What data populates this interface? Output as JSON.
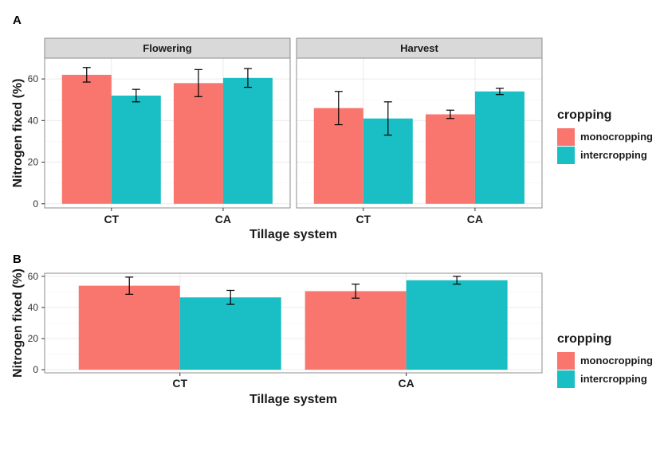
{
  "figure": {
    "panel_a_label": "A",
    "panel_b_label": "B"
  },
  "colors": {
    "monocropping": "#f8766d",
    "intercropping": "#19bfc4",
    "grid": "#ebebeb",
    "strip": "#d9d9d9"
  },
  "chart_data": [
    {
      "type": "bar",
      "panel": "A",
      "facets": [
        "Flowering",
        "Harvest"
      ],
      "categories": [
        "CT",
        "CA"
      ],
      "xlabel": "Tillage system",
      "ylabel": "Nitrogen fixed (%)",
      "ylim": [
        -2,
        70
      ],
      "yticks": [
        0,
        20,
        40,
        60
      ],
      "grid": true,
      "legend": {
        "title": "cropping",
        "placement": "right",
        "entries": [
          "monocropping",
          "intercropping"
        ]
      },
      "series": [
        {
          "name": "monocropping",
          "values": {
            "Flowering": [
              62,
              58
            ],
            "Harvest": [
              46,
              43
            ]
          },
          "error": {
            "Flowering": [
              3.5,
              6.5
            ],
            "Harvest": [
              8,
              2
            ]
          }
        },
        {
          "name": "intercropping",
          "values": {
            "Flowering": [
              52,
              60.5
            ],
            "Harvest": [
              41,
              54
            ]
          },
          "error": {
            "Flowering": [
              3,
              4.5
            ],
            "Harvest": [
              8,
              1.5
            ]
          }
        }
      ]
    },
    {
      "type": "bar",
      "panel": "B",
      "categories": [
        "CT",
        "CA"
      ],
      "xlabel": "Tillage system",
      "ylabel": "Nitrogen fixed (%)",
      "ylim": [
        -2,
        62
      ],
      "yticks": [
        0,
        20,
        40,
        60
      ],
      "grid": true,
      "legend": {
        "title": "cropping",
        "placement": "right",
        "entries": [
          "monocropping",
          "intercropping"
        ]
      },
      "series": [
        {
          "name": "monocropping",
          "values": [
            54,
            50.5
          ],
          "error": [
            5.5,
            4.5
          ]
        },
        {
          "name": "intercropping",
          "values": [
            46.5,
            57.5
          ],
          "error": [
            4.5,
            2.5
          ]
        }
      ]
    }
  ]
}
